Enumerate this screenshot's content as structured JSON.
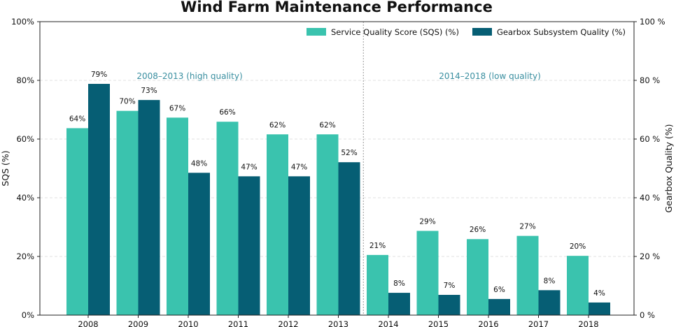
{
  "chart_data": {
    "type": "bar",
    "title": "Wind Farm Maintenance Performance",
    "categories": [
      "2008",
      "2009",
      "2010",
      "2011",
      "2012",
      "2013",
      "2014",
      "2015",
      "2016",
      "2017",
      "2018"
    ],
    "series": [
      {
        "name": "Service Quality Score (SQS) (%)",
        "axis": "left",
        "color": "#3ac3ae",
        "values": [
          63.7,
          69.6,
          67.3,
          65.9,
          61.6,
          61.6,
          20.5,
          28.7,
          25.9,
          27.0,
          20.2
        ],
        "labels": [
          "64%",
          "70%",
          "67%",
          "66%",
          "62%",
          "62%",
          "21%",
          "29%",
          "26%",
          "27%",
          "20%"
        ]
      },
      {
        "name": "Gearbox Subsystem Quality (%)",
        "axis": "right",
        "color": "#065e74",
        "values": [
          78.8,
          73.3,
          48.5,
          47.3,
          47.3,
          52.1,
          7.6,
          6.9,
          5.5,
          8.5,
          4.3
        ],
        "labels": [
          "79%",
          "73%",
          "48%",
          "47%",
          "47%",
          "52%",
          "8%",
          "7%",
          "6%",
          "8%",
          "4%"
        ]
      }
    ],
    "ylabel": "SQS (%)",
    "y2label": "Gearbox Quality (%)",
    "ylim": [
      0,
      100
    ],
    "y2lim": [
      0,
      100
    ],
    "yticks": [
      "0%",
      "20%",
      "40%",
      "60%",
      "80%",
      "100%"
    ],
    "y2ticks": [
      "0 %",
      "20 %",
      "40 %",
      "60 %",
      "80 %",
      "100 %"
    ],
    "grid": true,
    "legend_position": "top-right",
    "divider_after_category": "2013",
    "annotations": [
      {
        "text": "2008–2013 (high quality)",
        "color": "#3a8fa0"
      },
      {
        "text": "2014–2018 (low quality)",
        "color": "#3a8fa0"
      }
    ]
  }
}
